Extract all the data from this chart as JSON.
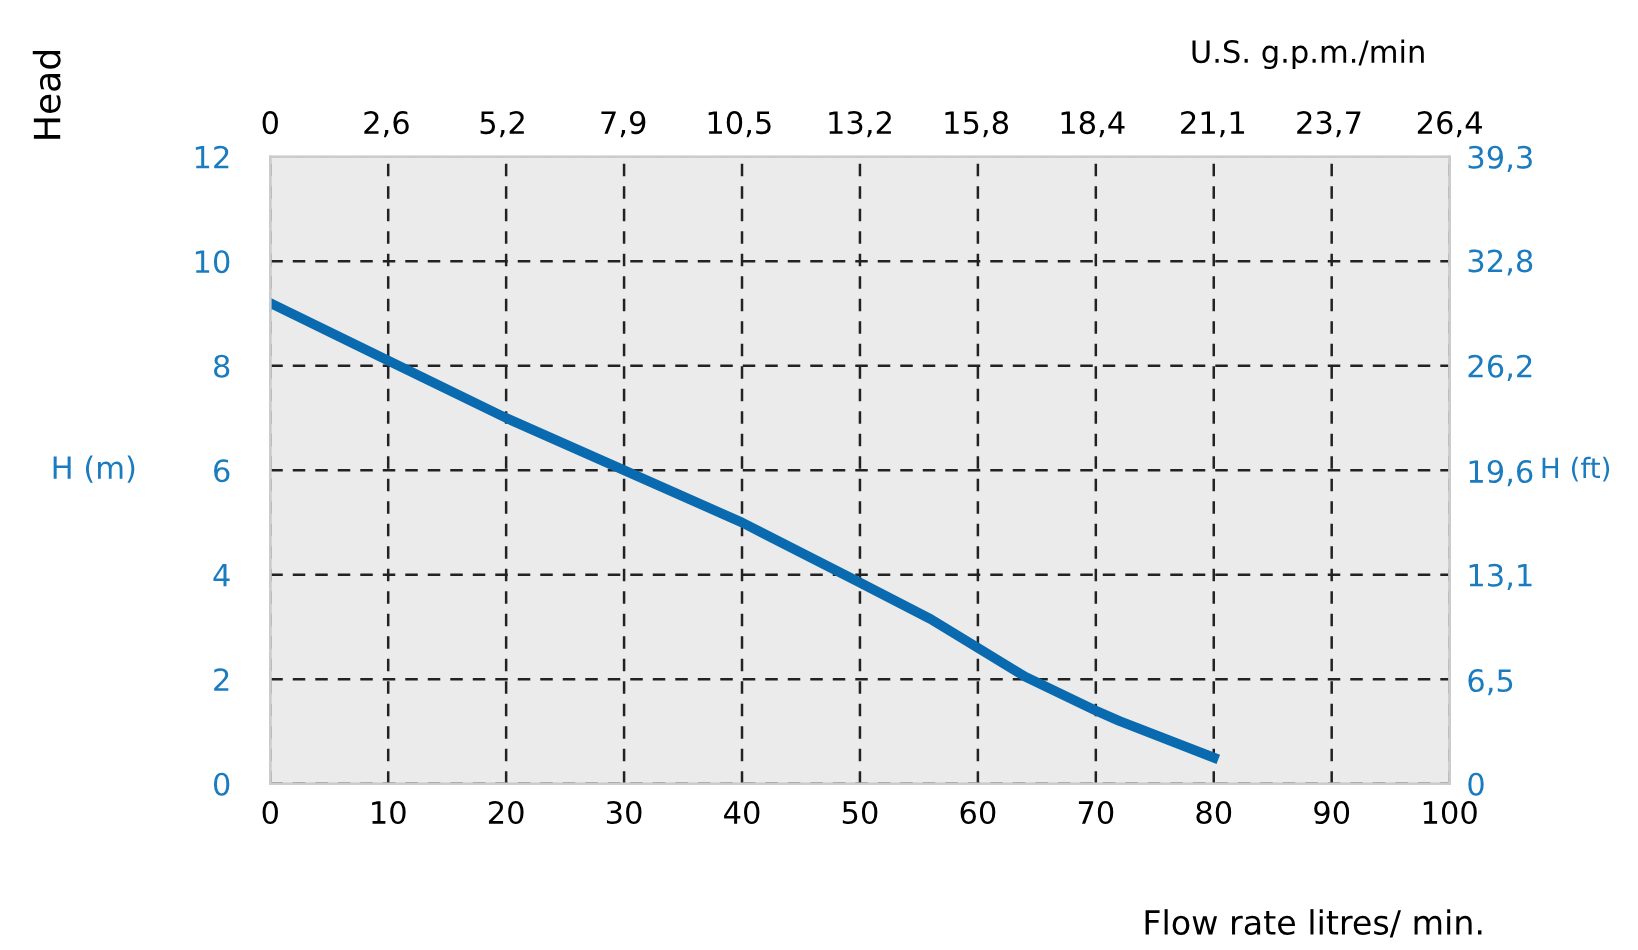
{
  "chart_data": {
    "type": "line",
    "xlabel": "Flow rate litres/ min.",
    "ylabel": "H (m)",
    "y2label": "H (ft)",
    "x2label": "U.S. g.p.m./min",
    "annotations": [
      "Head"
    ],
    "x": [
      0,
      10,
      20,
      30,
      40,
      50,
      56,
      60,
      64,
      70,
      72,
      80
    ],
    "series": [
      {
        "color": "#0a6ab0",
        "values": [
          9.2,
          8.1,
          7.0,
          6.0,
          5.0,
          3.85,
          3.15,
          2.6,
          2.05,
          1.4,
          1.2,
          0.5
        ]
      }
    ],
    "xlim": [
      0,
      100
    ],
    "xticks": [
      0,
      10,
      20,
      30,
      40,
      50,
      60,
      70,
      80,
      90,
      100
    ],
    "ylim": [
      0,
      12
    ],
    "yticks": [
      0,
      2,
      4,
      6,
      8,
      10,
      12
    ],
    "x2lim": [
      0,
      26.4
    ],
    "x2ticks": [
      0,
      {
        "value": 2.6,
        "label": "2,6"
      },
      {
        "value": 5.2,
        "label": "5,2"
      },
      {
        "value": 7.9,
        "label": "7,9"
      },
      {
        "value": 10.5,
        "label": "10,5"
      },
      {
        "value": 13.2,
        "label": "13,2"
      },
      {
        "value": 15.8,
        "label": "15,8"
      },
      {
        "value": 18.4,
        "label": "18,4"
      },
      {
        "value": 21.1,
        "label": "21,1"
      },
      {
        "value": 23.7,
        "label": "23,7"
      },
      {
        "value": 26.4,
        "label": "26,4"
      }
    ],
    "y2lim": [
      0,
      39.3
    ],
    "y2ticks": [
      0,
      {
        "value": 6.5,
        "label": "6,5"
      },
      {
        "value": 13.1,
        "label": "13,1"
      },
      {
        "value": 19.6,
        "label": "19,6"
      },
      {
        "value": 26.2,
        "label": "26,2"
      },
      {
        "value": 32.8,
        "label": "32,8"
      },
      {
        "value": 39.3,
        "label": "39,3"
      }
    ],
    "grid": true,
    "line_style": "solid",
    "marker": "none",
    "legend": false
  }
}
